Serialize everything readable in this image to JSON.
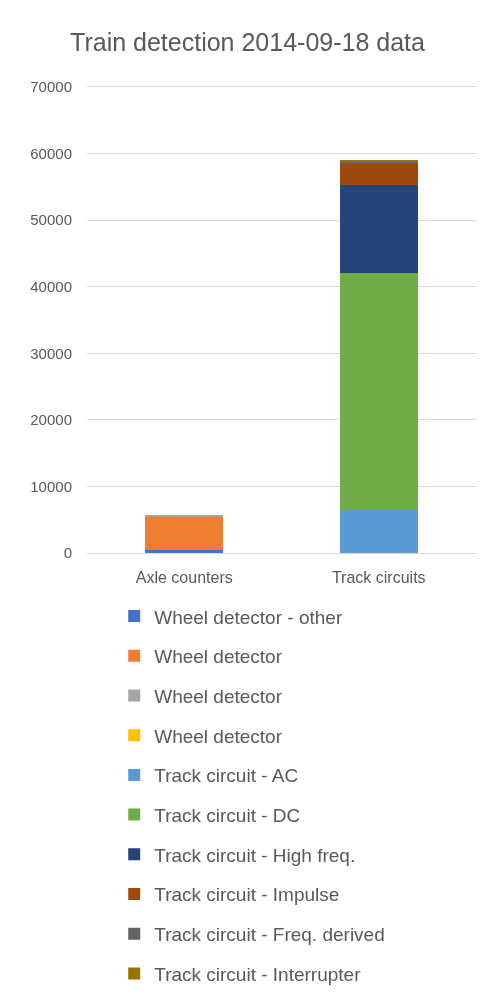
{
  "chart_data": {
    "type": "bar",
    "title": "Train detection 2014-09-18 data",
    "categories": [
      "Axle counters",
      "Track circuits"
    ],
    "stacked": true,
    "ylim": [
      0,
      70000
    ],
    "yticks": [
      0,
      10000,
      20000,
      30000,
      40000,
      50000,
      60000,
      70000
    ],
    "grid": "y",
    "legend": "bottom",
    "series": [
      {
        "name": "Wheel detector - other",
        "color": "#4472c4",
        "values": [
          400,
          null
        ]
      },
      {
        "name": "Wheel detector",
        "color": "#ed7d31",
        "values": [
          5000,
          null
        ]
      },
      {
        "name": "Wheel detector",
        "color": "#a5a5a5",
        "values": [
          300,
          null
        ]
      },
      {
        "name": "Wheel detector",
        "color": "#ffc000",
        "values": [
          null,
          null
        ]
      },
      {
        "name": "Track circuit - AC",
        "color": "#5b9bd5",
        "values": [
          null,
          6400
        ]
      },
      {
        "name": "Track circuit - DC",
        "color": "#70ad47",
        "values": [
          null,
          35600
        ]
      },
      {
        "name": "Track circuit - High freq.",
        "color": "#264478",
        "values": [
          null,
          13300
        ]
      },
      {
        "name": "Track circuit - Impulse",
        "color": "#9e480e",
        "values": [
          null,
          3100
        ]
      },
      {
        "name": "Track circuit - Freq. derived",
        "color": "#636363",
        "values": [
          null,
          400
        ]
      },
      {
        "name": "Track circuit - Interrupter",
        "color": "#997300",
        "values": [
          null,
          200
        ]
      }
    ]
  }
}
